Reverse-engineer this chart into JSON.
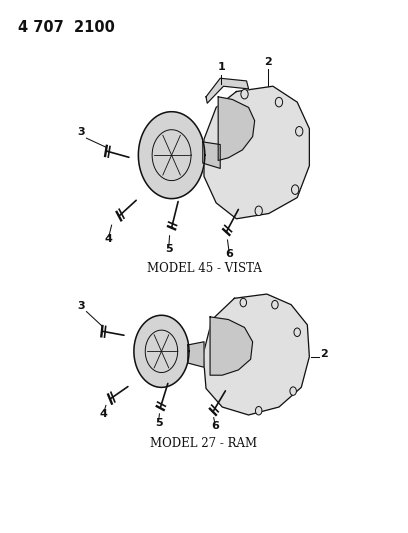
{
  "title_code": "4 707  2100",
  "background_color": "#ffffff",
  "line_color": "#111111",
  "model1_label": "MODEL 45 - VISTA",
  "model2_label": "MODEL 27 - RAM",
  "figsize": [
    4.08,
    5.33
  ],
  "dpi": 100
}
